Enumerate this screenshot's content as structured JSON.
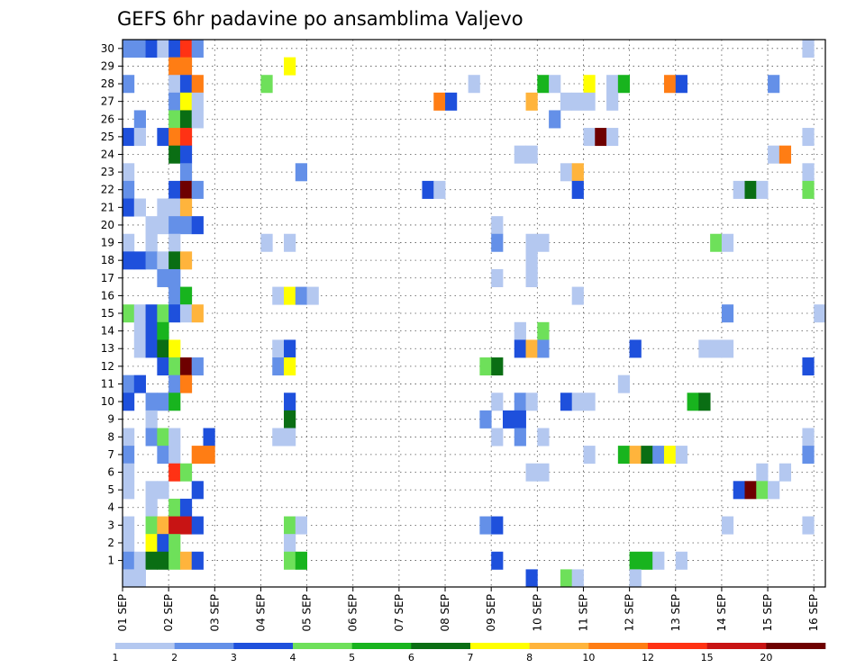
{
  "chart_data": {
    "type": "heatmap",
    "title": "GEFS 6hr padavine po ansamblima Valjevo",
    "x_labels": [
      "01 SEP",
      "02 SEP",
      "03 SEP",
      "04 SEP",
      "05 SEP",
      "06 SEP",
      "07 SEP",
      "08 SEP",
      "09 SEP",
      "10 SEP",
      "11 SEP",
      "12 SEP",
      "13 SEP",
      "14 SEP",
      "15 SEP",
      "16 SEP"
    ],
    "y_labels": [
      "1",
      "2",
      "3",
      "4",
      "5",
      "6",
      "7",
      "8",
      "9",
      "10",
      "11",
      "12",
      "13",
      "14",
      "15",
      "16",
      "17",
      "18",
      "19",
      "20",
      "21",
      "22",
      "23",
      "24",
      "25",
      "26",
      "27",
      "28",
      "29",
      "30"
    ],
    "legend_labels": [
      "1",
      "2",
      "3",
      "4",
      "5",
      "6",
      "7",
      "8",
      "10",
      "12",
      "15",
      "20"
    ],
    "legend_colors": [
      "#b4c8f0",
      "#6490e8",
      "#1e50dc",
      "#6ee05a",
      "#18b41e",
      "#0a6e14",
      "#ffff00",
      "#ffb43c",
      "#ff7d14",
      "#ff3214",
      "#c81414",
      "#6e0000"
    ],
    "grid": true,
    "cells_note": "cells: [time_step_index (0 = 01 SEP 00z, 4 steps per day), member, color_class_index]",
    "cells": [
      [
        0,
        30,
        1
      ],
      [
        1,
        30,
        1
      ],
      [
        2,
        30,
        2
      ],
      [
        3,
        30,
        0
      ],
      [
        4,
        30,
        2
      ],
      [
        5,
        30,
        9
      ],
      [
        6,
        30,
        1
      ],
      [
        59,
        30,
        0
      ],
      [
        4,
        29,
        8
      ],
      [
        5,
        29,
        8
      ],
      [
        14,
        29,
        6
      ],
      [
        0,
        28,
        1
      ],
      [
        4,
        28,
        0
      ],
      [
        5,
        28,
        2
      ],
      [
        6,
        28,
        8
      ],
      [
        12,
        28,
        3
      ],
      [
        30,
        28,
        0
      ],
      [
        36,
        28,
        4
      ],
      [
        37,
        28,
        0
      ],
      [
        40,
        28,
        6
      ],
      [
        42,
        28,
        0
      ],
      [
        43,
        28,
        4
      ],
      [
        47,
        28,
        8
      ],
      [
        48,
        28,
        2
      ],
      [
        56,
        28,
        1
      ],
      [
        4,
        27,
        1
      ],
      [
        5,
        27,
        6
      ],
      [
        6,
        27,
        0
      ],
      [
        27,
        27,
        8
      ],
      [
        28,
        27,
        2
      ],
      [
        35,
        27,
        7
      ],
      [
        38,
        27,
        0
      ],
      [
        39,
        27,
        0
      ],
      [
        40,
        27,
        0
      ],
      [
        42,
        27,
        0
      ],
      [
        1,
        26,
        1
      ],
      [
        4,
        26,
        3
      ],
      [
        5,
        26,
        5
      ],
      [
        6,
        26,
        0
      ],
      [
        37,
        26,
        1
      ],
      [
        0,
        25,
        2
      ],
      [
        1,
        25,
        0
      ],
      [
        3,
        25,
        2
      ],
      [
        4,
        25,
        8
      ],
      [
        5,
        25,
        9
      ],
      [
        40,
        25,
        0
      ],
      [
        41,
        25,
        11
      ],
      [
        42,
        25,
        0
      ],
      [
        59,
        25,
        0
      ],
      [
        4,
        24,
        5
      ],
      [
        5,
        24,
        2
      ],
      [
        34,
        24,
        0
      ],
      [
        35,
        24,
        0
      ],
      [
        56,
        24,
        0
      ],
      [
        57,
        24,
        8
      ],
      [
        0,
        23,
        0
      ],
      [
        5,
        23,
        1
      ],
      [
        15,
        23,
        1
      ],
      [
        38,
        23,
        0
      ],
      [
        39,
        23,
        7
      ],
      [
        59,
        23,
        0
      ],
      [
        0,
        22,
        1
      ],
      [
        4,
        22,
        2
      ],
      [
        5,
        22,
        11
      ],
      [
        6,
        22,
        1
      ],
      [
        26,
        22,
        2
      ],
      [
        27,
        22,
        0
      ],
      [
        39,
        22,
        2
      ],
      [
        53,
        22,
        0
      ],
      [
        54,
        22,
        5
      ],
      [
        55,
        22,
        0
      ],
      [
        59,
        22,
        3
      ],
      [
        0,
        21,
        2
      ],
      [
        1,
        21,
        0
      ],
      [
        3,
        21,
        0
      ],
      [
        4,
        21,
        0
      ],
      [
        5,
        21,
        7
      ],
      [
        2,
        20,
        0
      ],
      [
        3,
        20,
        0
      ],
      [
        4,
        20,
        1
      ],
      [
        5,
        20,
        1
      ],
      [
        6,
        20,
        2
      ],
      [
        32,
        20,
        0
      ],
      [
        0,
        19,
        0
      ],
      [
        2,
        19,
        0
      ],
      [
        4,
        19,
        0
      ],
      [
        12,
        19,
        0
      ],
      [
        14,
        19,
        0
      ],
      [
        32,
        19,
        1
      ],
      [
        35,
        19,
        0
      ],
      [
        36,
        19,
        0
      ],
      [
        51,
        19,
        3
      ],
      [
        52,
        19,
        0
      ],
      [
        0,
        18,
        2
      ],
      [
        1,
        18,
        2
      ],
      [
        2,
        18,
        1
      ],
      [
        3,
        18,
        0
      ],
      [
        4,
        18,
        5
      ],
      [
        5,
        18,
        7
      ],
      [
        35,
        18,
        0
      ],
      [
        3,
        17,
        1
      ],
      [
        4,
        17,
        1
      ],
      [
        32,
        17,
        0
      ],
      [
        35,
        17,
        0
      ],
      [
        4,
        16,
        1
      ],
      [
        5,
        16,
        4
      ],
      [
        13,
        16,
        0
      ],
      [
        14,
        16,
        6
      ],
      [
        15,
        16,
        1
      ],
      [
        16,
        16,
        0
      ],
      [
        39,
        16,
        0
      ],
      [
        0,
        15,
        3
      ],
      [
        1,
        15,
        0
      ],
      [
        2,
        15,
        2
      ],
      [
        3,
        15,
        3
      ],
      [
        4,
        15,
        2
      ],
      [
        5,
        15,
        0
      ],
      [
        6,
        15,
        7
      ],
      [
        52,
        15,
        1
      ],
      [
        60,
        15,
        0
      ],
      [
        1,
        14,
        0
      ],
      [
        2,
        14,
        2
      ],
      [
        3,
        14,
        4
      ],
      [
        34,
        14,
        0
      ],
      [
        36,
        14,
        3
      ],
      [
        1,
        13,
        0
      ],
      [
        2,
        13,
        2
      ],
      [
        3,
        13,
        5
      ],
      [
        4,
        13,
        6
      ],
      [
        13,
        13,
        0
      ],
      [
        14,
        13,
        2
      ],
      [
        34,
        13,
        2
      ],
      [
        35,
        13,
        7
      ],
      [
        36,
        13,
        1
      ],
      [
        44,
        13,
        2
      ],
      [
        50,
        13,
        0
      ],
      [
        51,
        13,
        0
      ],
      [
        52,
        13,
        0
      ],
      [
        3,
        12,
        2
      ],
      [
        4,
        12,
        3
      ],
      [
        5,
        12,
        11
      ],
      [
        6,
        12,
        1
      ],
      [
        13,
        12,
        1
      ],
      [
        14,
        12,
        6
      ],
      [
        31,
        12,
        3
      ],
      [
        32,
        12,
        5
      ],
      [
        59,
        12,
        2
      ],
      [
        0,
        11,
        1
      ],
      [
        1,
        11,
        2
      ],
      [
        4,
        11,
        1
      ],
      [
        5,
        11,
        8
      ],
      [
        43,
        11,
        0
      ],
      [
        0,
        10,
        2
      ],
      [
        2,
        10,
        1
      ],
      [
        3,
        10,
        1
      ],
      [
        4,
        10,
        4
      ],
      [
        14,
        10,
        2
      ],
      [
        32,
        10,
        0
      ],
      [
        34,
        10,
        1
      ],
      [
        35,
        10,
        0
      ],
      [
        38,
        10,
        2
      ],
      [
        39,
        10,
        0
      ],
      [
        40,
        10,
        0
      ],
      [
        49,
        10,
        4
      ],
      [
        50,
        10,
        5
      ],
      [
        2,
        9,
        0
      ],
      [
        14,
        9,
        5
      ],
      [
        31,
        9,
        1
      ],
      [
        33,
        9,
        2
      ],
      [
        34,
        9,
        2
      ],
      [
        0,
        8,
        0
      ],
      [
        2,
        8,
        1
      ],
      [
        3,
        8,
        3
      ],
      [
        4,
        8,
        0
      ],
      [
        7,
        8,
        2
      ],
      [
        13,
        8,
        0
      ],
      [
        14,
        8,
        0
      ],
      [
        32,
        8,
        0
      ],
      [
        34,
        8,
        1
      ],
      [
        36,
        8,
        0
      ],
      [
        59,
        8,
        0
      ],
      [
        0,
        7,
        1
      ],
      [
        3,
        7,
        1
      ],
      [
        4,
        7,
        0
      ],
      [
        6,
        7,
        8
      ],
      [
        7,
        7,
        8
      ],
      [
        40,
        7,
        0
      ],
      [
        43,
        7,
        4
      ],
      [
        44,
        7,
        7
      ],
      [
        45,
        7,
        5
      ],
      [
        46,
        7,
        1
      ],
      [
        47,
        7,
        6
      ],
      [
        48,
        7,
        0
      ],
      [
        59,
        7,
        1
      ],
      [
        0,
        6,
        0
      ],
      [
        4,
        6,
        9
      ],
      [
        5,
        6,
        3
      ],
      [
        35,
        6,
        0
      ],
      [
        36,
        6,
        0
      ],
      [
        55,
        6,
        0
      ],
      [
        57,
        6,
        0
      ],
      [
        0,
        5,
        0
      ],
      [
        2,
        5,
        0
      ],
      [
        3,
        5,
        0
      ],
      [
        6,
        5,
        2
      ],
      [
        53,
        5,
        2
      ],
      [
        54,
        5,
        11
      ],
      [
        55,
        5,
        3
      ],
      [
        56,
        5,
        0
      ],
      [
        2,
        4,
        0
      ],
      [
        4,
        4,
        3
      ],
      [
        5,
        4,
        2
      ],
      [
        0,
        3,
        0
      ],
      [
        2,
        3,
        3
      ],
      [
        3,
        3,
        7
      ],
      [
        4,
        3,
        10
      ],
      [
        5,
        3,
        10
      ],
      [
        6,
        3,
        2
      ],
      [
        14,
        3,
        3
      ],
      [
        15,
        3,
        0
      ],
      [
        31,
        3,
        1
      ],
      [
        32,
        3,
        2
      ],
      [
        52,
        3,
        0
      ],
      [
        59,
        3,
        0
      ],
      [
        0,
        2,
        0
      ],
      [
        2,
        2,
        6
      ],
      [
        3,
        2,
        2
      ],
      [
        4,
        2,
        3
      ],
      [
        14,
        2,
        0
      ],
      [
        0,
        1,
        1
      ],
      [
        1,
        1,
        0
      ],
      [
        2,
        1,
        5
      ],
      [
        3,
        1,
        5
      ],
      [
        4,
        1,
        3
      ],
      [
        5,
        1,
        7
      ],
      [
        6,
        1,
        2
      ],
      [
        14,
        1,
        3
      ],
      [
        15,
        1,
        4
      ],
      [
        32,
        1,
        2
      ],
      [
        44,
        1,
        4
      ],
      [
        45,
        1,
        4
      ],
      [
        46,
        1,
        0
      ],
      [
        48,
        1,
        0
      ],
      [
        0,
        0,
        0
      ],
      [
        1,
        0,
        0
      ],
      [
        35,
        0,
        2
      ],
      [
        38,
        0,
        3
      ],
      [
        39,
        0,
        0
      ],
      [
        44,
        0,
        0
      ]
    ]
  }
}
